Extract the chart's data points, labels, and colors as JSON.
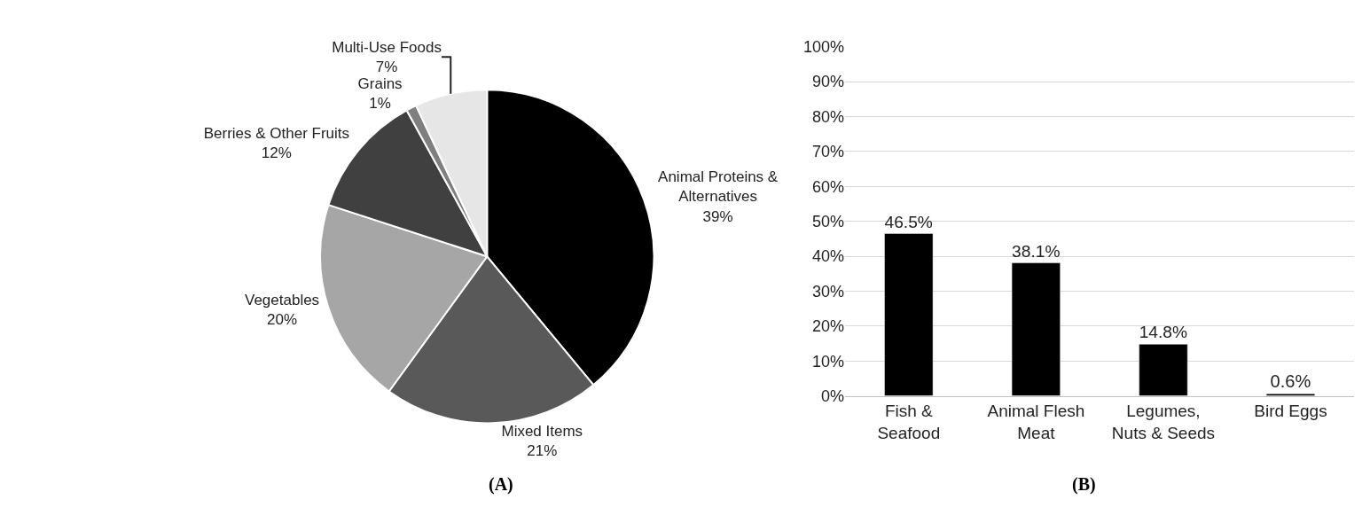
{
  "chart_data": [
    {
      "type": "pie",
      "categories": [
        "Animal Proteins &\nAlternatives",
        "Mixed Items",
        "Vegetables",
        "Berries & Other Fruits",
        "Grains",
        "Multi-Use Foods"
      ],
      "values": [
        39,
        21,
        20,
        12,
        1,
        7
      ],
      "colors": [
        "#000000",
        "#595959",
        "#a6a6a6",
        "#404040",
        "#7f7f7f",
        "#e6e6e6"
      ],
      "value_labels": [
        "39%",
        "21%",
        "20%",
        "12%",
        "1%",
        "7%"
      ],
      "annotations": [
        "(A)"
      ],
      "legend": false
    },
    {
      "type": "bar",
      "categories": [
        "Fish &\nSeafood",
        "Animal Flesh\nMeat",
        "Legumes,\nNuts & Seeds",
        "Bird Eggs"
      ],
      "values": [
        46.5,
        38.1,
        14.8,
        0.6
      ],
      "color": "#000000",
      "value_labels": [
        "46.5%",
        "38.1%",
        "14.8%",
        "0.6%"
      ],
      "ylim": [
        0,
        100
      ],
      "yticks": [
        {
          "value": 0,
          "label": "0%"
        },
        {
          "value": 10,
          "label": "10%"
        },
        {
          "value": 20,
          "label": "20%"
        },
        {
          "value": 30,
          "label": "30%"
        },
        {
          "value": 40,
          "label": "40%"
        },
        {
          "value": 50,
          "label": "50%"
        },
        {
          "value": 60,
          "label": "60%"
        },
        {
          "value": 70,
          "label": "70%"
        },
        {
          "value": 80,
          "label": "80%"
        },
        {
          "value": 90,
          "label": "90%"
        },
        {
          "value": 100,
          "label": "100%"
        }
      ],
      "grid": "y",
      "annotations": [
        "(B)"
      ],
      "legend": false
    }
  ]
}
